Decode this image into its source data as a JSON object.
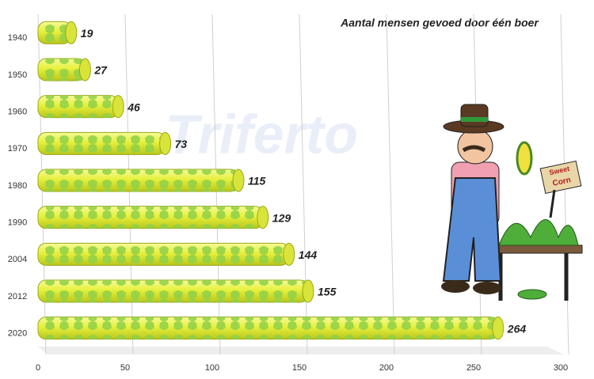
{
  "chart_data": {
    "type": "bar",
    "orientation": "horizontal",
    "title": "Aantal mensen gevoed door één boer",
    "watermark": "Triferto",
    "sign_text": [
      "Sweet",
      "Corn"
    ],
    "categories": [
      "1940",
      "1950",
      "1960",
      "1970",
      "1980",
      "1990",
      "2004",
      "2012",
      "2020"
    ],
    "values": [
      19,
      27,
      46,
      73,
      115,
      129,
      144,
      155,
      264
    ],
    "color": "#e6f03c",
    "xlim": [
      0,
      300
    ],
    "xticks": [
      0,
      50,
      100,
      150,
      200,
      250,
      300
    ],
    "grid": true
  }
}
